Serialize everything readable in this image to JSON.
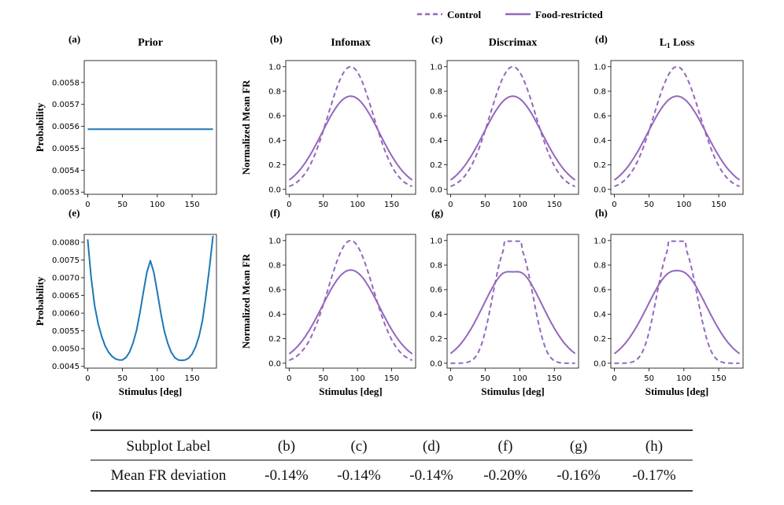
{
  "legend": [
    {
      "label": "Control",
      "style": "dashed"
    },
    {
      "label": "Food-restricted",
      "style": "solid"
    }
  ],
  "colors": {
    "purple": "#9467bd",
    "blue": "#1f77b4"
  },
  "chart_data": [
    {
      "panel": "(a)",
      "type": "line",
      "title": "Prior",
      "xlabel": "",
      "ylabel": "Probability",
      "xlim": [
        -5,
        185
      ],
      "ylim": [
        0.00529,
        0.0059
      ],
      "xticks": [
        "0",
        "50",
        "100",
        "150"
      ],
      "yticks": [
        "0.0053",
        "0.0054",
        "0.0055",
        "0.0056",
        "0.0057",
        "0.0058"
      ],
      "curve": "flat",
      "series": [
        {
          "x": [
            0,
            180
          ],
          "values": [
            0.005587,
            0.005587
          ]
        }
      ]
    },
    {
      "panel": "(b)",
      "type": "line",
      "title": "Infomax",
      "xlabel": "",
      "ylabel": "Normalized Mean FR",
      "xlim": [
        -5,
        185
      ],
      "ylim": [
        -0.04,
        1.05
      ],
      "xticks": [
        "0",
        "50",
        "100",
        "150"
      ],
      "yticks": [
        "0.0",
        "0.2",
        "0.4",
        "0.6",
        "0.8",
        "1.0"
      ],
      "curve": "tuning",
      "series": [
        {
          "name": "Control",
          "peak": 1.0,
          "center": 90,
          "width": 33
        },
        {
          "name": "Food-restricted",
          "peak": 0.76,
          "center": 90,
          "width": 42
        }
      ]
    },
    {
      "panel": "(c)",
      "type": "line",
      "title": "Discrimax",
      "xlabel": "",
      "ylabel": "",
      "xlim": [
        -5,
        185
      ],
      "ylim": [
        -0.04,
        1.05
      ],
      "xticks": [
        "0",
        "50",
        "100",
        "150"
      ],
      "yticks": [
        "0.0",
        "0.2",
        "0.4",
        "0.6",
        "0.8",
        "1.0"
      ],
      "curve": "tuning",
      "series": [
        {
          "name": "Control",
          "peak": 1.0,
          "center": 90,
          "width": 33
        },
        {
          "name": "Food-restricted",
          "peak": 0.76,
          "center": 90,
          "width": 42
        }
      ]
    },
    {
      "panel": "(d)",
      "type": "line",
      "title": "L",
      "title_sub": "1",
      "title_rest": " Loss",
      "xlabel": "",
      "ylabel": "",
      "xlim": [
        -5,
        185
      ],
      "ylim": [
        -0.04,
        1.05
      ],
      "xticks": [
        "0",
        "50",
        "100",
        "150"
      ],
      "yticks": [
        "0.0",
        "0.2",
        "0.4",
        "0.6",
        "0.8",
        "1.0"
      ],
      "curve": "tuning",
      "series": [
        {
          "name": "Control",
          "peak": 1.0,
          "center": 90,
          "width": 33
        },
        {
          "name": "Food-restricted",
          "peak": 0.76,
          "center": 90,
          "width": 42
        }
      ]
    },
    {
      "panel": "(e)",
      "type": "line",
      "title": "",
      "xlabel": "Stimulus [deg]",
      "ylabel": "Probability",
      "xlim": [
        -5,
        185
      ],
      "ylim": [
        0.00445,
        0.00822
      ],
      "xticks": [
        "0",
        "50",
        "100",
        "150"
      ],
      "yticks": [
        "0.0045",
        "0.0050",
        "0.0055",
        "0.0060",
        "0.0065",
        "0.0070",
        "0.0075",
        "0.0080"
      ],
      "curve": "points",
      "series": [
        {
          "x": [
            0,
            5,
            10,
            15,
            20,
            25,
            30,
            35,
            40,
            45,
            50,
            55,
            60,
            65,
            70,
            75,
            80,
            85,
            90,
            95,
            100,
            105,
            110,
            115,
            120,
            125,
            130,
            135,
            140,
            145,
            150,
            155,
            160,
            165,
            170,
            175,
            180
          ],
          "values": [
            0.00808,
            0.007,
            0.0062,
            0.0057,
            0.00535,
            0.00508,
            0.0049,
            0.00478,
            0.00471,
            0.00468,
            0.00468,
            0.00475,
            0.0049,
            0.00515,
            0.0055,
            0.006,
            0.0066,
            0.00715,
            0.00748,
            0.00715,
            0.0066,
            0.006,
            0.0055,
            0.00515,
            0.0049,
            0.00475,
            0.00468,
            0.00467,
            0.00468,
            0.00473,
            0.00485,
            0.00505,
            0.00535,
            0.0058,
            0.0065,
            0.0073,
            0.00818
          ]
        }
      ]
    },
    {
      "panel": "(f)",
      "type": "line",
      "title": "",
      "xlabel": "Stimulus [deg]",
      "ylabel": "Normalized Mean FR",
      "xlim": [
        -5,
        185
      ],
      "ylim": [
        -0.04,
        1.05
      ],
      "xticks": [
        "0",
        "50",
        "100",
        "150"
      ],
      "yticks": [
        "0.0",
        "0.2",
        "0.4",
        "0.6",
        "0.8",
        "1.0"
      ],
      "curve": "tuning",
      "series": [
        {
          "name": "Control",
          "peak": 1.0,
          "center": 90,
          "width": 33
        },
        {
          "name": "Food-restricted",
          "peak": 0.76,
          "center": 90,
          "width": 42
        }
      ]
    },
    {
      "panel": "(g)",
      "type": "line",
      "title": "",
      "xlabel": "Stimulus [deg]",
      "ylabel": "",
      "xlim": [
        -5,
        185
      ],
      "ylim": [
        -0.04,
        1.05
      ],
      "xticks": [
        "0",
        "50",
        "100",
        "150"
      ],
      "yticks": [
        "0.0",
        "0.2",
        "0.4",
        "0.6",
        "0.8",
        "1.0"
      ],
      "curve": "tuning-dip",
      "series": [
        {
          "name": "Control",
          "peak": 1.0,
          "center": 90,
          "width": 33,
          "flat": 0.02
        },
        {
          "name": "Food-restricted",
          "peak": 0.79,
          "center": 90,
          "width": 42,
          "dip": 0.045
        }
      ]
    },
    {
      "panel": "(h)",
      "type": "line",
      "title": "",
      "xlabel": "Stimulus [deg]",
      "ylabel": "",
      "xlim": [
        -5,
        185
      ],
      "ylim": [
        -0.04,
        1.05
      ],
      "xticks": [
        "0",
        "50",
        "100",
        "150"
      ],
      "yticks": [
        "0.0",
        "0.2",
        "0.4",
        "0.6",
        "0.8",
        "1.0"
      ],
      "curve": "tuning-dip",
      "series": [
        {
          "name": "Control",
          "peak": 1.0,
          "center": 90,
          "width": 33,
          "flat": 0.02
        },
        {
          "name": "Food-restricted",
          "peak": 0.775,
          "center": 90,
          "width": 42,
          "dip": 0.02
        }
      ]
    }
  ],
  "table": {
    "label": "(i)",
    "header": [
      "Subplot Label",
      "(b)",
      "(c)",
      "(d)",
      "(f)",
      "(g)",
      "(h)"
    ],
    "row": [
      "Mean FR deviation",
      "-0.14%",
      "-0.14%",
      "-0.14%",
      "-0.20%",
      "-0.16%",
      "-0.17%"
    ]
  }
}
